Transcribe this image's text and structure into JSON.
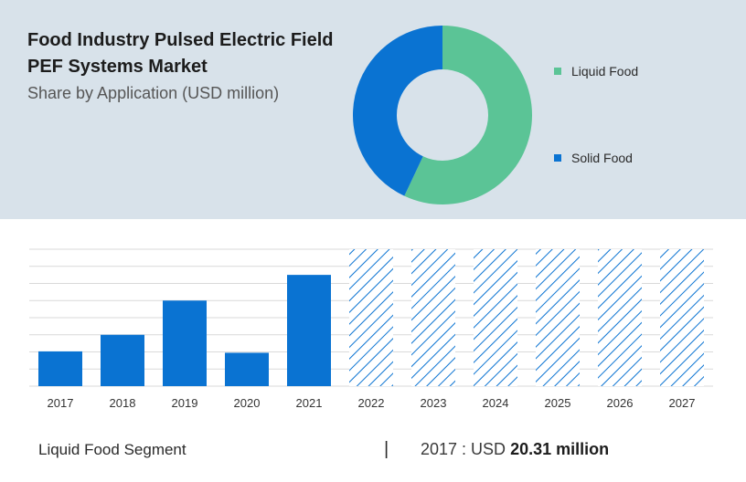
{
  "title_lines": [
    "Food Industry Pulsed Electric Field",
    "PEF Systems Market"
  ],
  "subtitle": "Share by Application (USD million)",
  "colors": {
    "liquid": "#5bc496",
    "solid": "#0a73d2",
    "bar": "#0a73d2",
    "grid": "#d9d9d9",
    "panel": "#d8e2ea"
  },
  "chart_data": [
    {
      "type": "pie",
      "donut": true,
      "categories": [
        "Liquid Food",
        "Solid Food"
      ],
      "values": [
        57,
        43
      ],
      "legend_position": "right"
    },
    {
      "type": "bar",
      "categories": [
        "2017",
        "2018",
        "2019",
        "2020",
        "2021",
        "2022",
        "2023",
        "2024",
        "2025",
        "2026",
        "2027"
      ],
      "values": [
        20.31,
        30,
        50,
        19.5,
        65,
        null,
        null,
        null,
        null,
        null,
        null
      ],
      "forecast_categories": [
        "2022",
        "2023",
        "2024",
        "2025",
        "2026",
        "2027"
      ],
      "ylim": [
        0,
        80
      ],
      "grid": true
    }
  ],
  "footer": {
    "segment": "Liquid Food Segment",
    "divider": "|",
    "value_prefix": "2017 : USD ",
    "value": "20.31 million"
  }
}
